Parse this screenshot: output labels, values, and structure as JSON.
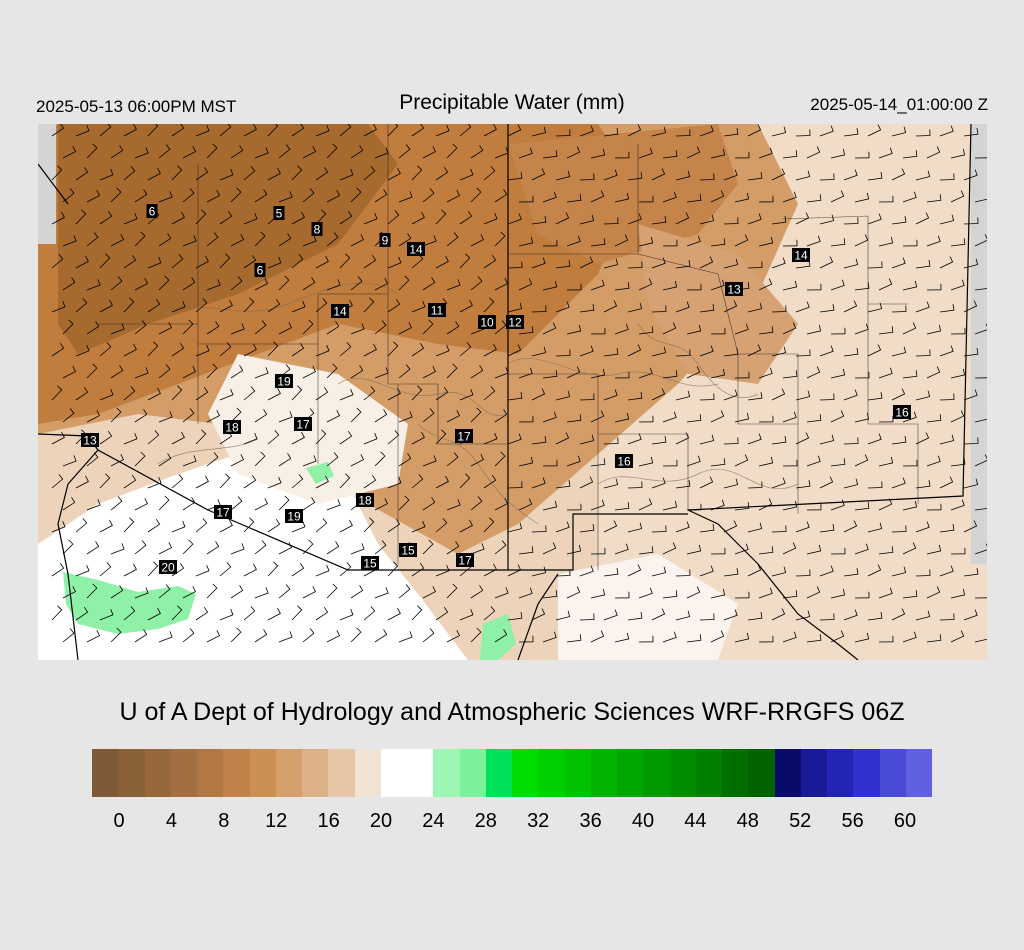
{
  "header": {
    "local_time": "2025-05-13 06:00PM MST",
    "title": "Precipitable Water (mm)",
    "utc_time": "2025-05-14_01:00:00 Z"
  },
  "footer": {
    "credit": "U of A Dept of Hydrology and Atmospheric Sciences WRF-RRGFS 06Z"
  },
  "colorbar": {
    "colors": [
      "#7f5a36",
      "#8b6139",
      "#96683c",
      "#a36f40",
      "#b17843",
      "#c08248",
      "#cc8f52",
      "#d59f6c",
      "#ddb187",
      "#e7c6a8",
      "#f1e2d4",
      "#ffffff",
      "#ffffff",
      "#9df7b3",
      "#7cf09b",
      "#00e05a",
      "#00dd00",
      "#00cf00",
      "#00c200",
      "#00b400",
      "#00a700",
      "#009a00",
      "#008c00",
      "#007f00",
      "#006f00",
      "#006300",
      "#0a0a68",
      "#1a1a96",
      "#2424b4",
      "#3030cc",
      "#4a4ad8",
      "#6060e0"
    ],
    "tick_labels": [
      "0",
      "4",
      "8",
      "12",
      "16",
      "20",
      "24",
      "28",
      "32",
      "36",
      "40",
      "44",
      "48",
      "52",
      "56",
      "60"
    ]
  },
  "map_labels": [
    "6",
    "5",
    "8",
    "9",
    "14",
    "6",
    "14",
    "11",
    "10",
    "12",
    "14",
    "13",
    "19",
    "18",
    "17",
    "17",
    "16",
    "16",
    "13",
    "17",
    "19",
    "18",
    "15",
    "15",
    "17",
    "20"
  ],
  "map_colors": {
    "dry_dark": "#b87535",
    "dry_mid": "#cc8f52",
    "dry_light": "#ddb187",
    "pale": "#eed8c2",
    "moist": "#ffffff",
    "green": "#8ff0a8",
    "border": "#000000",
    "contour": "#7a6a5a",
    "offmap": "#d4d4d4"
  }
}
